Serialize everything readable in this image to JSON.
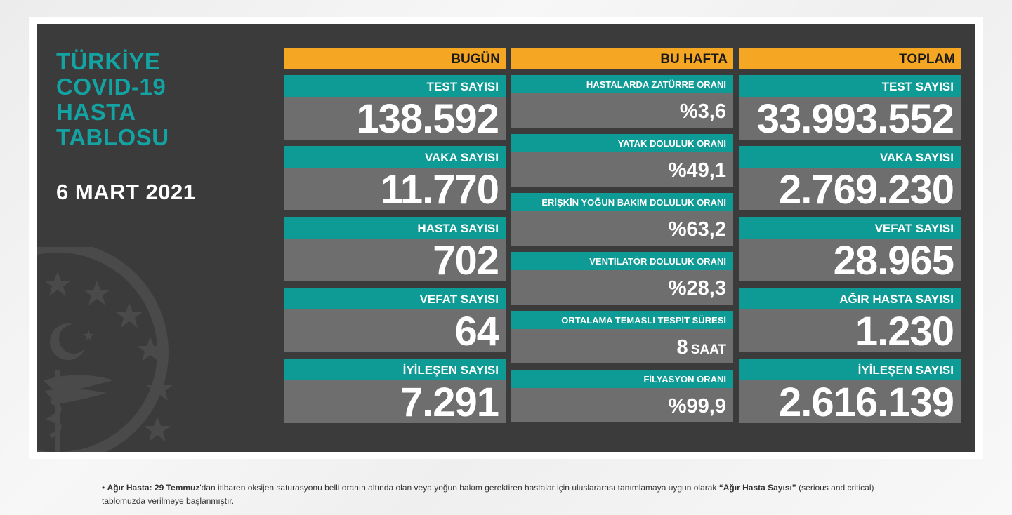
{
  "panel": {
    "title_lines": [
      "TÜRKİYE",
      "COVID-19",
      "HASTA",
      "TABLOSU"
    ],
    "date": "6 MART 2021"
  },
  "today": {
    "header": "BUGÜN",
    "cards": [
      {
        "label": "TEST SAYISI",
        "value": "138.592"
      },
      {
        "label": "VAKA SAYISI",
        "value": "11.770"
      },
      {
        "label": "HASTA SAYISI",
        "value": "702"
      },
      {
        "label": "VEFAT SAYISI",
        "value": "64"
      },
      {
        "label": "İYİLEŞEN SAYISI",
        "value": "7.291"
      }
    ]
  },
  "week": {
    "header": "BU HAFTA",
    "cards": [
      {
        "label": "HASTALARDA ZATÜRRE ORANI",
        "value": "%3,6"
      },
      {
        "label": "YATAK DOLULUK ORANI",
        "value": "%49,1"
      },
      {
        "label": "ERİŞKİN YOĞUN BAKIM DOLULUK ORANI",
        "value": "%63,2"
      },
      {
        "label": "VENTİLATÖR DOLULUK ORANI",
        "value": "%28,3"
      },
      {
        "label": "ORTALAMA TEMASLI TESPİT SÜRESİ",
        "value": "8",
        "unit": "SAAT"
      },
      {
        "label": "FİLYASYON ORANI",
        "value": "%99,9"
      }
    ]
  },
  "total": {
    "header": "TOPLAM",
    "cards": [
      {
        "label": "TEST SAYISI",
        "value": "33.993.552"
      },
      {
        "label": "VAKA SAYISI",
        "value": "2.769.230"
      },
      {
        "label": "VEFAT SAYISI",
        "value": "28.965"
      },
      {
        "label": "AĞIR HASTA SAYISI",
        "value": "1.230"
      },
      {
        "label": "İYİLEŞEN SAYISI",
        "value": "2.616.139"
      }
    ]
  },
  "footnote": {
    "bullet": "•",
    "bold1": "Ağır Hasta:",
    "bold2": "29 Temmuz",
    "text1": "'dan itibaren oksijen saturasyonu belli oranın altında olan veya yoğun bakım gerektiren hastalar için uluslararası tanımlamaya uygun olarak ",
    "bold3": "“Ağır Hasta Sayısı”",
    "text2": " (serious and critical) tablomuzda verilmeye başlanmıştır."
  },
  "colors": {
    "panel_bg": "#3b3b3b",
    "header_orange": "#f5a623",
    "label_teal": "#0e9a95",
    "value_gray": "#6e6e6e",
    "title_teal": "#14a3a3"
  },
  "icons": {
    "emblem": "ministry-of-health-emblem"
  }
}
